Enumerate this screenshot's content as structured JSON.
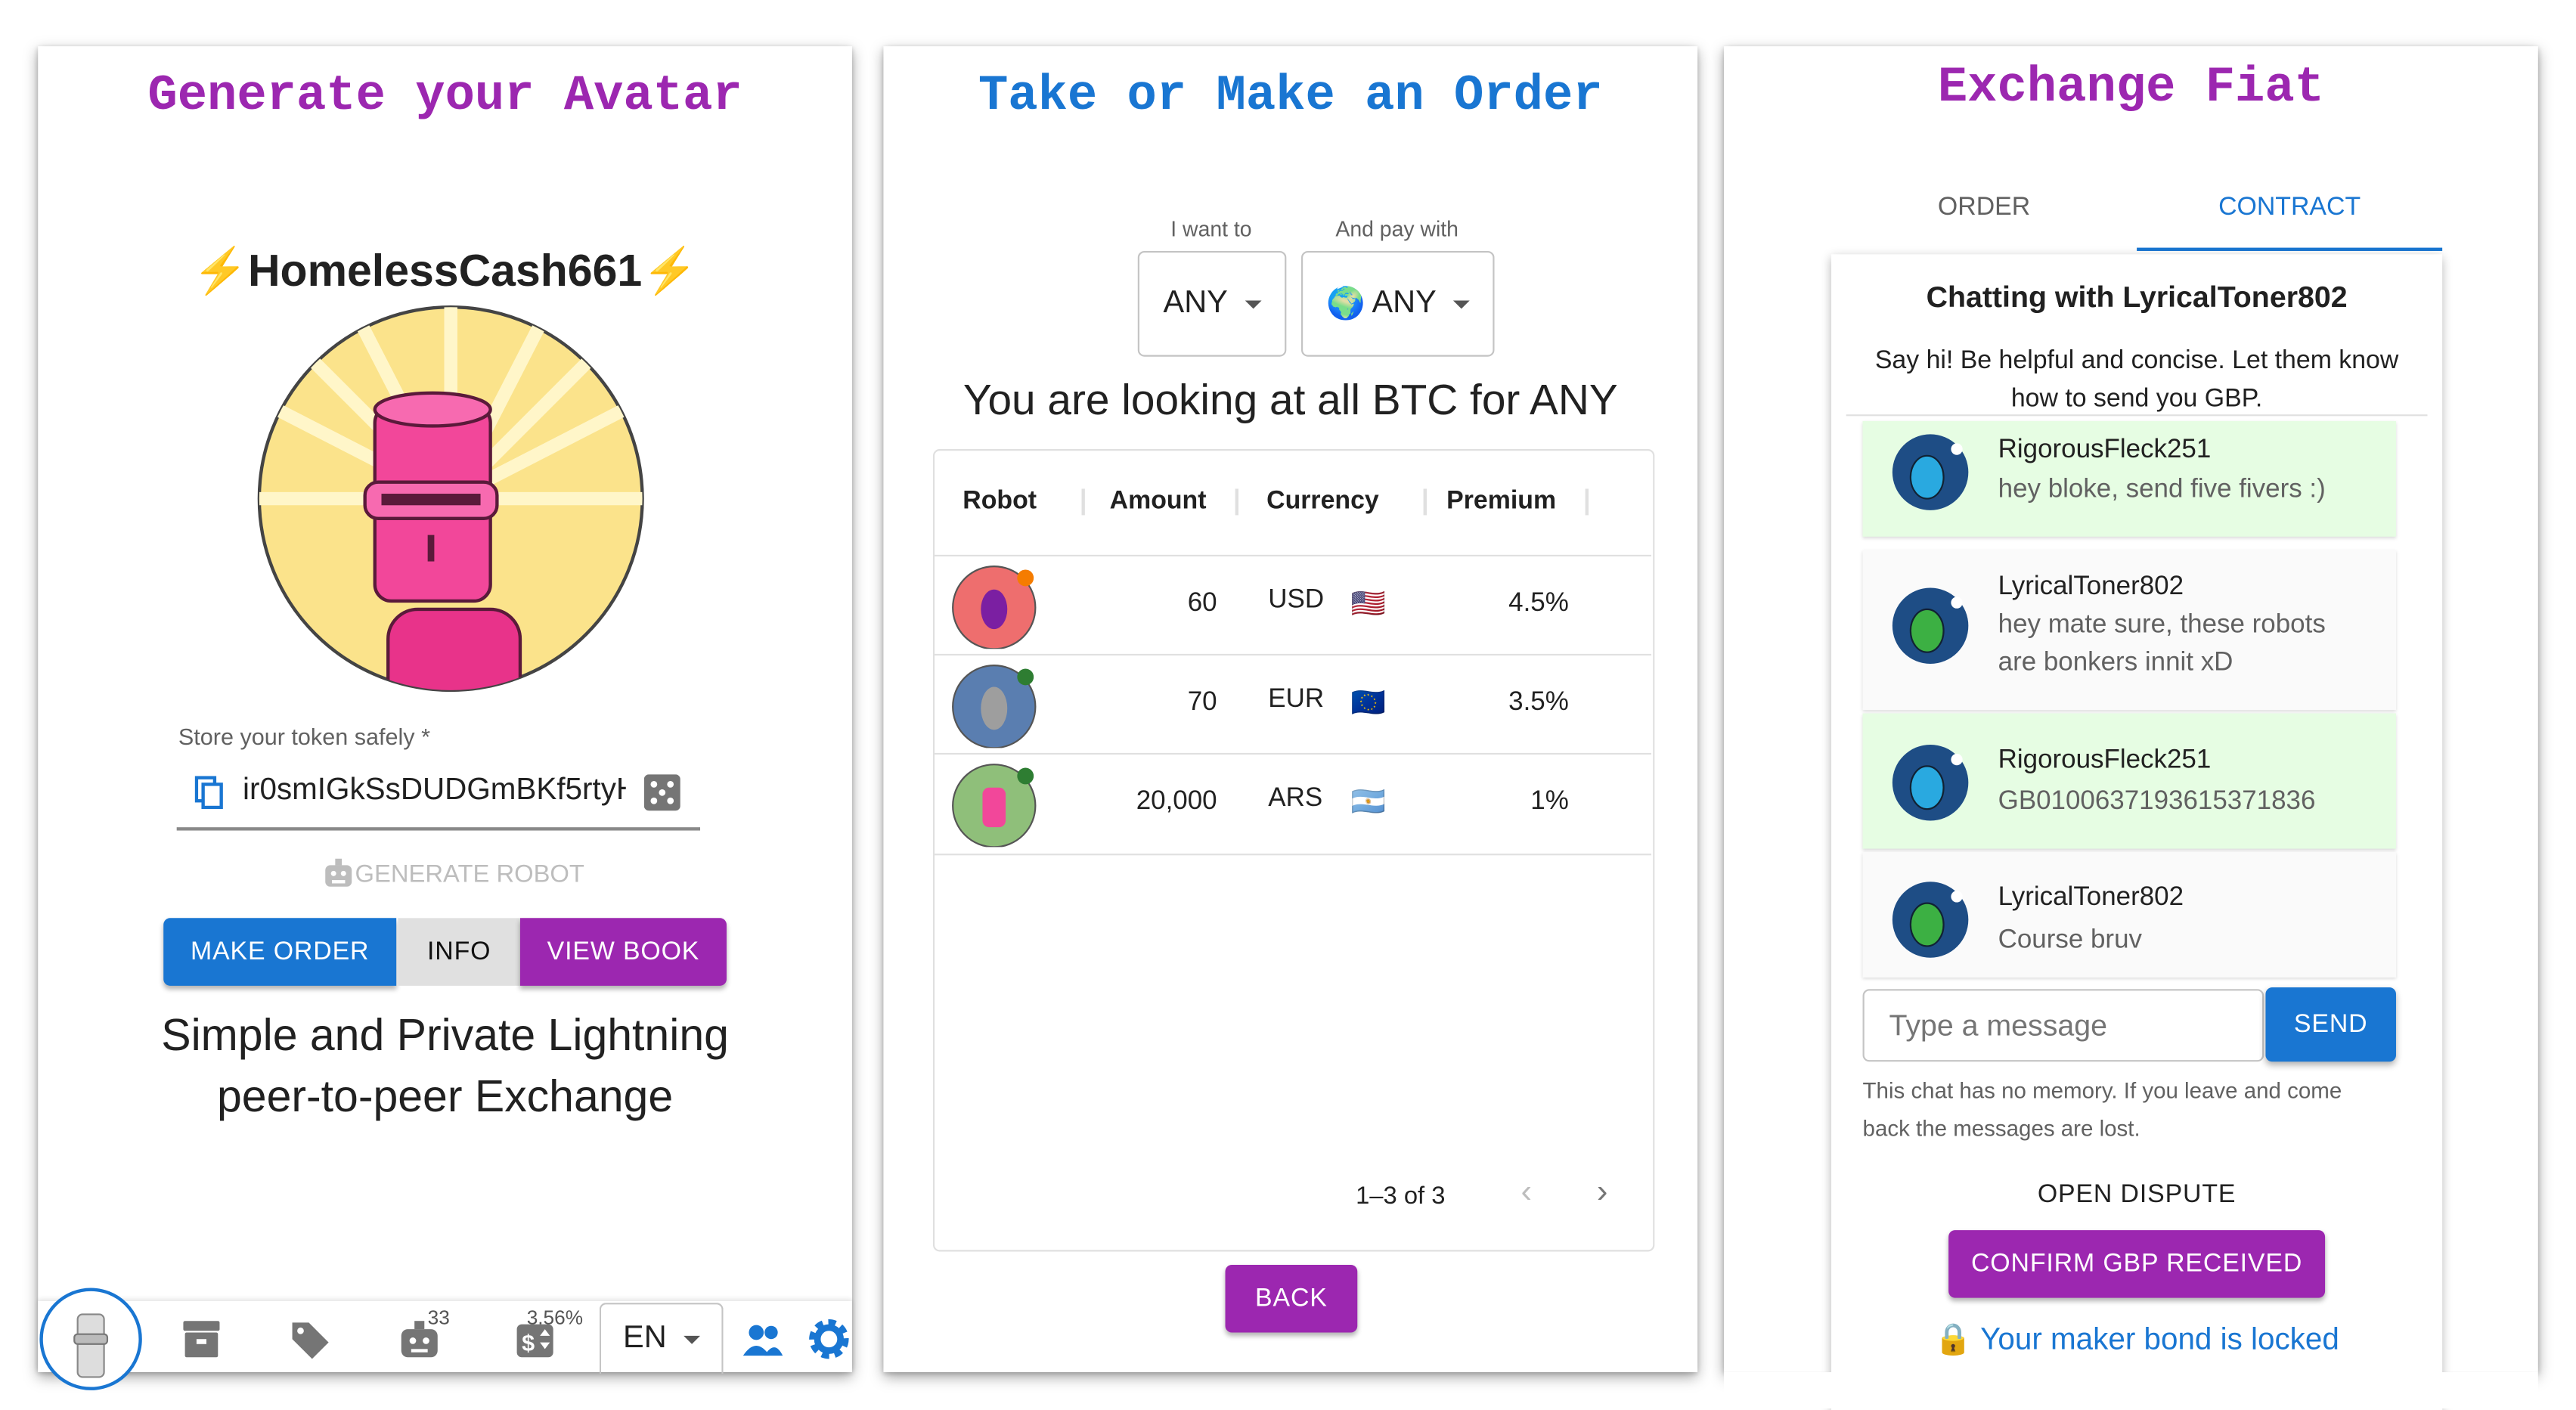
{
  "colors": {
    "primary": "#1976d2",
    "secondary": "#9c27b0",
    "sent_bg": "#e6fde3",
    "received_bg": "#fafafa"
  },
  "panel_avatar": {
    "title": "Generate your Avatar",
    "nickname": "HomelessCash661",
    "nickname_icon": "lightning-bolt-icon",
    "token_label": "Store your token safely *",
    "token_value": "ir0smIGkSsDUDGmBKf5rtyH",
    "generate_label": "GENERATE ROBOT",
    "buttons": {
      "make_order": "MAKE ORDER",
      "info": "INFO",
      "view_book": "VIEW BOOK"
    },
    "tagline_line1": "Simple and Private Lightning",
    "tagline_line2": "peer-to-peer Exchange",
    "bottom_nav": {
      "robots_count": "33",
      "premium": "3.56%",
      "language": "EN",
      "icons": [
        "robot-avatar",
        "archive-icon",
        "tag-icon",
        "robot-icon",
        "exchange-rate-icon",
        "language-select",
        "community-icon",
        "settings-icon"
      ]
    }
  },
  "panel_book": {
    "title": "Take or Make an Order",
    "want_label": "I want to",
    "want_value": "ANY",
    "pay_label": "And pay with",
    "pay_value": "ANY",
    "pay_icon": "🌍",
    "heading": "You are looking at all BTC for ANY",
    "columns": [
      "Robot",
      "Amount",
      "Currency",
      "Premium"
    ],
    "rows": [
      {
        "amount": "60",
        "currency": "USD",
        "flag": "🇺🇸",
        "premium": "4.5%",
        "status": "orange"
      },
      {
        "amount": "70",
        "currency": "EUR",
        "flag": "🇪🇺",
        "premium": "3.5%",
        "status": "green"
      },
      {
        "amount": "20,000",
        "currency": "ARS",
        "flag": "🇦🇷",
        "premium": "1%",
        "status": "green"
      }
    ],
    "pagination": "1–3 of 3",
    "back_label": "BACK"
  },
  "panel_chat": {
    "title": "Exchange Fiat",
    "tabs": [
      {
        "label": "ORDER",
        "active": false
      },
      {
        "label": "CONTRACT",
        "active": true
      }
    ],
    "chat_title": "Chatting with LyricalToner802",
    "intro_line1": "Say hi! Be helpful and concise. Let them know",
    "intro_line2": "how to send you GBP.",
    "messages": [
      {
        "author": "RigorousFleck251",
        "text": "hey bloke, send five fivers :)",
        "mine": true
      },
      {
        "author": "LyricalToner802",
        "text": "hey mate sure, these robots",
        "text2": "are bonkers innit xD",
        "mine": false
      },
      {
        "author": "RigorousFleck251",
        "text": "GB01006371936153718​36",
        "mine": true
      },
      {
        "author": "LyricalToner802",
        "text": "Course bruv",
        "mine": false
      }
    ],
    "input_placeholder": "Type a message",
    "send_label": "SEND",
    "note_line1": "This chat has no memory. If you leave and come",
    "note_line2": "back the messages are lost.",
    "dispute_label": "OPEN DISPUTE",
    "confirm_label": "CONFIRM GBP RECEIVED",
    "bond_text": "Your maker bond is locked",
    "bond_icon": "🔒"
  }
}
